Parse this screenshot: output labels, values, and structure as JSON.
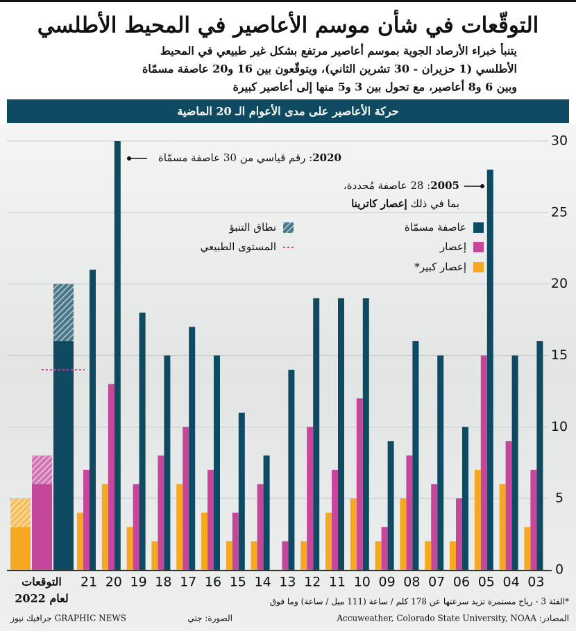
{
  "chart_data": {
    "type": "bar",
    "title": "التوقّعات في شأن موسم الأعاصير في المحيط الأطلسي",
    "subtitle": [
      "يتنبأ خبراء الأرصاد الجوية بموسم أعاصير مرتفع بشكل غير طبيعي في المحيط",
      "الأطلسي (1 حزيران - 30 تشرين الثاني)، ويتوقّعون بين 16 و20 عاصفة مسمّاة",
      "وبين 6 و8 أعاصير، مع تحول بين 3 و5 منها إلى أعاصير كبيرة"
    ],
    "banner": "حركة الأعاصير على مدى الأعوام الـ 20 الماضية",
    "categories": [
      "21",
      "20",
      "19",
      "18",
      "17",
      "16",
      "15",
      "14",
      "13",
      "12",
      "11",
      "10",
      "09",
      "08",
      "07",
      "06",
      "05",
      "04",
      "03"
    ],
    "series": [
      {
        "name": "عاصفة مسمّاة",
        "color": "#0e4a62",
        "values": [
          21,
          30,
          18,
          15,
          17,
          15,
          11,
          8,
          14,
          19,
          19,
          19,
          9,
          16,
          15,
          10,
          28,
          15,
          16
        ]
      },
      {
        "name": "إعصار",
        "color": "#c4479b",
        "values": [
          7,
          13,
          6,
          8,
          10,
          7,
          4,
          6,
          2,
          10,
          7,
          12,
          3,
          8,
          6,
          5,
          15,
          9,
          7
        ]
      },
      {
        "name": "إعصار كبير*",
        "color": "#f7a823",
        "values": [
          4,
          6,
          3,
          2,
          6,
          4,
          2,
          2,
          0,
          2,
          4,
          5,
          2,
          5,
          2,
          2,
          7,
          6,
          3
        ]
      }
    ],
    "forecast": {
      "label": [
        "التوقعات",
        "لعام 2022"
      ],
      "ranges": [
        [
          16,
          20
        ],
        [
          6,
          8
        ],
        [
          3,
          5
        ]
      ],
      "range_name": "نطاق التنبؤ",
      "normal": 14,
      "normal_name": "المستوى الطبيعي"
    },
    "annotations": [
      {
        "year": "2020",
        "text": [
          ": رقم قياسي من 30 عاصفة مسمّاة"
        ]
      },
      {
        "year": "2005",
        "text": [
          ": 28 عاصفة مُحددة،",
          "بما في ذلك ",
          "إعصار كاترينا"
        ]
      }
    ],
    "ylim": [
      0,
      30
    ],
    "yticks": [
      0,
      5,
      10,
      15,
      20,
      25,
      30
    ],
    "grid": true,
    "footnote": "*الفئة 3 - رياح مستمرة تزيد سرعتها عن 178 كلم / ساعة (111 ميل / ساعة) وما فوق",
    "source": "المصادر: Accuweather, Colorado State University, NOAA",
    "photo": "الصورة: جتي",
    "credit": "GRAPHIC NEWS جرافيك نيوز"
  }
}
